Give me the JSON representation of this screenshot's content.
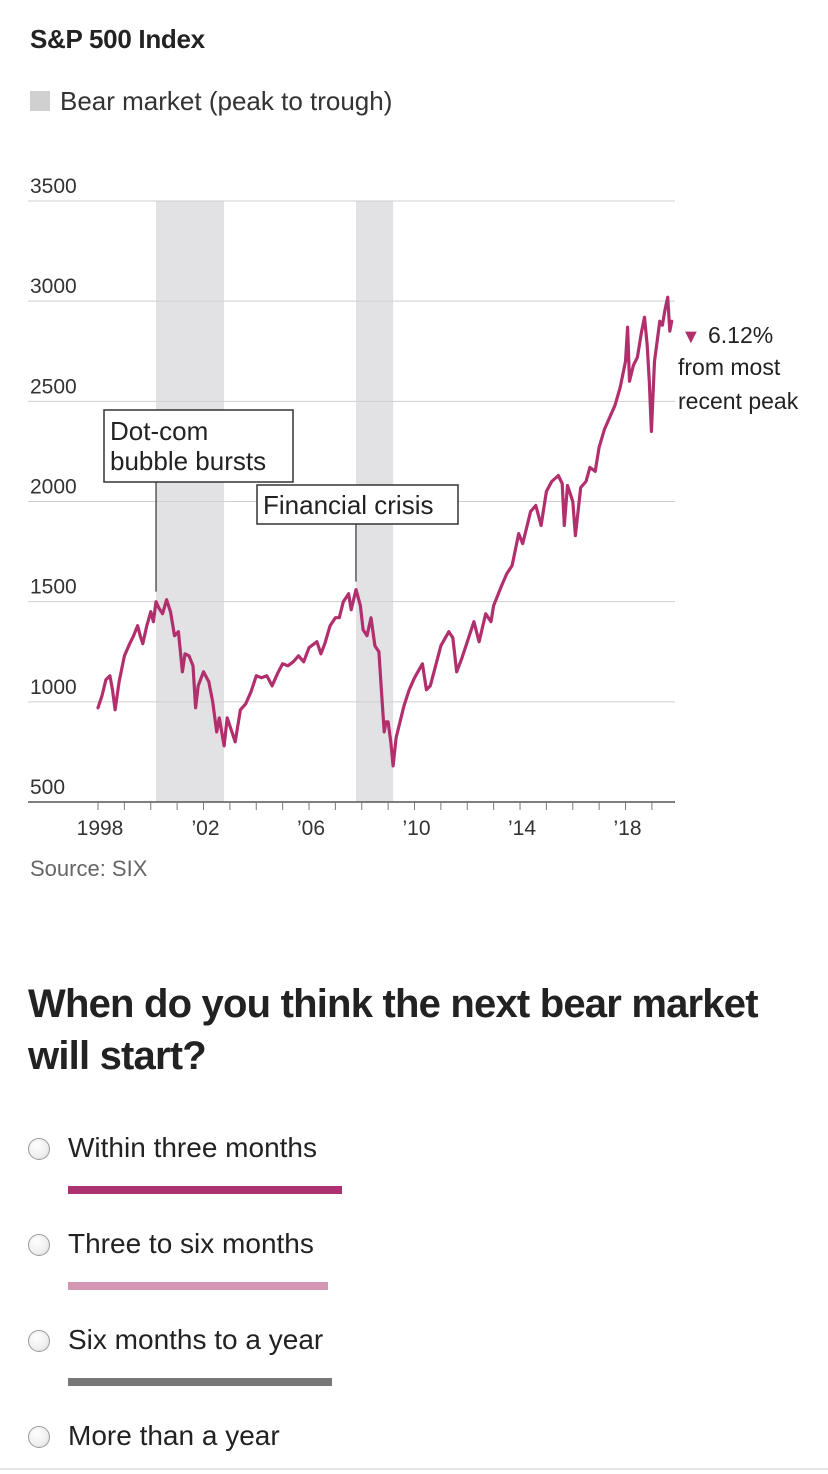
{
  "header": {
    "title": "S&P 500 Index",
    "legend_label": "Bear market (peak to trough)",
    "legend_color": "#d0d0d0"
  },
  "chart_data": {
    "type": "line",
    "title": "S&P 500 Index",
    "xlabel": "",
    "ylabel": "",
    "xlim": [
      1998,
      2019.8
    ],
    "ylim": [
      500,
      3500
    ],
    "yticks": [
      500,
      1000,
      1500,
      2000,
      2500,
      3000,
      3500
    ],
    "ytick_labels": [
      "500",
      "1000",
      "1500",
      "2000",
      "2500",
      "3000",
      "3500"
    ],
    "xticks": [
      1998,
      2002,
      2006,
      2010,
      2014,
      2018
    ],
    "xtick_labels": [
      "1998",
      "’02",
      "’06",
      "’10",
      "’14",
      "’18"
    ],
    "grid": true,
    "line_color": "#b22f6e",
    "shaded_color": "#e2e2e4",
    "series": [
      {
        "name": "S&P 500 Index",
        "points": [
          [
            1998.0,
            970
          ],
          [
            1998.15,
            1030
          ],
          [
            1998.3,
            1110
          ],
          [
            1998.45,
            1130
          ],
          [
            1998.55,
            1060
          ],
          [
            1998.65,
            960
          ],
          [
            1998.8,
            1100
          ],
          [
            1999.0,
            1230
          ],
          [
            1999.2,
            1290
          ],
          [
            1999.35,
            1330
          ],
          [
            1999.5,
            1380
          ],
          [
            1999.6,
            1330
          ],
          [
            1999.7,
            1290
          ],
          [
            1999.85,
            1380
          ],
          [
            2000.0,
            1450
          ],
          [
            2000.1,
            1400
          ],
          [
            2000.2,
            1500
          ],
          [
            2000.3,
            1470
          ],
          [
            2000.45,
            1440
          ],
          [
            2000.6,
            1510
          ],
          [
            2000.75,
            1450
          ],
          [
            2000.9,
            1330
          ],
          [
            2001.05,
            1350
          ],
          [
            2001.2,
            1150
          ],
          [
            2001.3,
            1240
          ],
          [
            2001.45,
            1230
          ],
          [
            2001.6,
            1180
          ],
          [
            2001.7,
            970
          ],
          [
            2001.8,
            1080
          ],
          [
            2002.0,
            1150
          ],
          [
            2002.2,
            1100
          ],
          [
            2002.35,
            1000
          ],
          [
            2002.5,
            850
          ],
          [
            2002.6,
            920
          ],
          [
            2002.78,
            780
          ],
          [
            2002.9,
            920
          ],
          [
            2003.0,
            880
          ],
          [
            2003.2,
            800
          ],
          [
            2003.4,
            960
          ],
          [
            2003.6,
            990
          ],
          [
            2003.8,
            1050
          ],
          [
            2004.0,
            1130
          ],
          [
            2004.2,
            1120
          ],
          [
            2004.4,
            1130
          ],
          [
            2004.6,
            1080
          ],
          [
            2004.8,
            1140
          ],
          [
            2005.0,
            1190
          ],
          [
            2005.2,
            1180
          ],
          [
            2005.4,
            1200
          ],
          [
            2005.6,
            1230
          ],
          [
            2005.8,
            1200
          ],
          [
            2006.0,
            1270
          ],
          [
            2006.3,
            1300
          ],
          [
            2006.45,
            1240
          ],
          [
            2006.6,
            1290
          ],
          [
            2006.8,
            1380
          ],
          [
            2007.0,
            1420
          ],
          [
            2007.15,
            1420
          ],
          [
            2007.3,
            1500
          ],
          [
            2007.5,
            1540
          ],
          [
            2007.6,
            1460
          ],
          [
            2007.78,
            1560
          ],
          [
            2007.95,
            1480
          ],
          [
            2008.05,
            1360
          ],
          [
            2008.2,
            1330
          ],
          [
            2008.35,
            1420
          ],
          [
            2008.5,
            1280
          ],
          [
            2008.65,
            1250
          ],
          [
            2008.75,
            1050
          ],
          [
            2008.85,
            850
          ],
          [
            2008.92,
            900
          ],
          [
            2009.0,
            900
          ],
          [
            2009.1,
            800
          ],
          [
            2009.19,
            680
          ],
          [
            2009.3,
            820
          ],
          [
            2009.45,
            900
          ],
          [
            2009.6,
            980
          ],
          [
            2009.8,
            1060
          ],
          [
            2010.0,
            1120
          ],
          [
            2010.3,
            1190
          ],
          [
            2010.45,
            1060
          ],
          [
            2010.6,
            1080
          ],
          [
            2010.8,
            1180
          ],
          [
            2011.0,
            1280
          ],
          [
            2011.3,
            1350
          ],
          [
            2011.45,
            1320
          ],
          [
            2011.6,
            1150
          ],
          [
            2011.8,
            1220
          ],
          [
            2012.0,
            1300
          ],
          [
            2012.25,
            1400
          ],
          [
            2012.45,
            1300
          ],
          [
            2012.7,
            1440
          ],
          [
            2012.9,
            1400
          ],
          [
            2013.0,
            1480
          ],
          [
            2013.3,
            1580
          ],
          [
            2013.5,
            1640
          ],
          [
            2013.7,
            1680
          ],
          [
            2013.95,
            1840
          ],
          [
            2014.1,
            1790
          ],
          [
            2014.4,
            1950
          ],
          [
            2014.6,
            1980
          ],
          [
            2014.8,
            1880
          ],
          [
            2015.0,
            2050
          ],
          [
            2015.2,
            2100
          ],
          [
            2015.45,
            2130
          ],
          [
            2015.6,
            2090
          ],
          [
            2015.68,
            1880
          ],
          [
            2015.8,
            2080
          ],
          [
            2016.0,
            2000
          ],
          [
            2016.1,
            1830
          ],
          [
            2016.3,
            2070
          ],
          [
            2016.5,
            2100
          ],
          [
            2016.65,
            2170
          ],
          [
            2016.85,
            2150
          ],
          [
            2017.0,
            2270
          ],
          [
            2017.2,
            2360
          ],
          [
            2017.4,
            2420
          ],
          [
            2017.6,
            2480
          ],
          [
            2017.8,
            2570
          ],
          [
            2018.0,
            2700
          ],
          [
            2018.08,
            2870
          ],
          [
            2018.15,
            2600
          ],
          [
            2018.3,
            2680
          ],
          [
            2018.45,
            2720
          ],
          [
            2018.6,
            2840
          ],
          [
            2018.72,
            2920
          ],
          [
            2018.82,
            2780
          ],
          [
            2018.9,
            2600
          ],
          [
            2018.98,
            2350
          ],
          [
            2019.1,
            2700
          ],
          [
            2019.3,
            2900
          ],
          [
            2019.4,
            2880
          ],
          [
            2019.5,
            2960
          ],
          [
            2019.6,
            3020
          ],
          [
            2019.68,
            2850
          ],
          [
            2019.75,
            2900
          ]
        ]
      }
    ],
    "shaded_periods": [
      {
        "start": 2000.2,
        "end": 2002.78
      },
      {
        "start": 2007.78,
        "end": 2009.19
      }
    ],
    "annotations": [
      {
        "lines": [
          "Dot-com",
          "bubble bursts"
        ],
        "x": 2000.2,
        "y": 1520
      },
      {
        "lines": [
          "Financial crisis"
        ],
        "x": 2007.78,
        "y": 1560
      }
    ],
    "marker": {
      "symbol": "▼",
      "color": "#b22f6e",
      "value": "6.12%",
      "text_lines": [
        "from most",
        "recent peak"
      ]
    }
  },
  "footer": {
    "source": "Source: SIX"
  },
  "poll": {
    "question": "When do you think the next bear market will start?",
    "options": [
      {
        "label": "Within three months",
        "bar_color": "#ab3270"
      },
      {
        "label": "Three to six months",
        "bar_color": "#d596b4"
      },
      {
        "label": "Six months to a year",
        "bar_color": "#777777"
      },
      {
        "label": "More than a year",
        "bar_color": ""
      }
    ]
  }
}
